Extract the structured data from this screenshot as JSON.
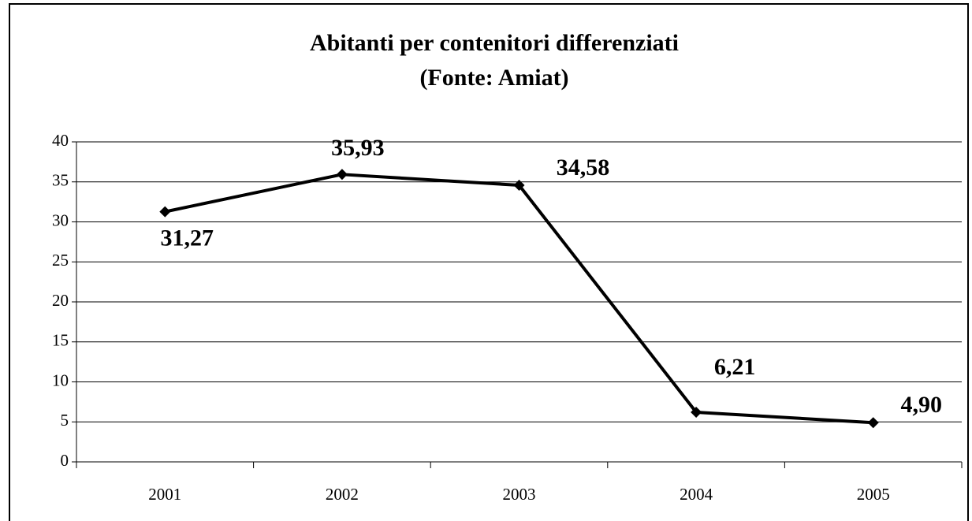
{
  "chart_data": {
    "type": "line",
    "title": "Abitanti per contenitori differenziati",
    "subtitle": "(Fonte: Amiat)",
    "categories": [
      "2001",
      "2002",
      "2003",
      "2004",
      "2005"
    ],
    "values": [
      31.27,
      35.93,
      34.58,
      6.21,
      4.9
    ],
    "value_labels": [
      "31,27",
      "35,93",
      "34,58",
      "6,21",
      "4,90"
    ],
    "color": "#000000",
    "ylim": [
      0,
      40
    ],
    "yticks": [
      0,
      5,
      10,
      15,
      20,
      25,
      30,
      35,
      40
    ],
    "grid": true
  }
}
